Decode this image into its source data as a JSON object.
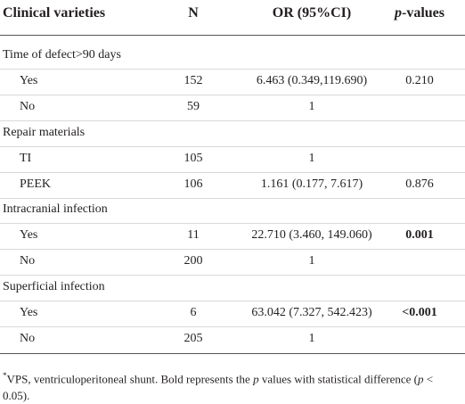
{
  "table": {
    "header": [
      "Clinical varieties",
      "N",
      "OR (95%CI)",
      {
        "italic": "p",
        "text": "-values"
      }
    ],
    "rows": [
      {
        "label": "Time of defect>90 days"
      },
      {
        "label": "Yes",
        "n": 152,
        "or": "6.463 (0.349,119.690)",
        "p": "0.210"
      },
      {
        "label": "No",
        "n": 59,
        "or": "1"
      },
      {
        "label": "Repair materials"
      },
      {
        "label": "TI",
        "n": 105,
        "or": "1"
      },
      {
        "label": "PEEK",
        "n": 106,
        "or": "1.161 (0.177, 7.617)",
        "p": "0.876"
      },
      {
        "label": "Intracranial infection"
      },
      {
        "label": "Yes",
        "n": 11,
        "or": "22.710 (3.460, 149.060)",
        "p": "0.001",
        "bold": true
      },
      {
        "label": "No",
        "n": 200,
        "or": "1"
      },
      {
        "label": "Superficial infection"
      },
      {
        "label": "Yes",
        "n": 6,
        "or": "63.042 (7.327, 542.423)",
        "p": "<0.001",
        "bold": true
      },
      {
        "label": "No",
        "n": 205,
        "or": "1"
      }
    ],
    "footnote": [
      {
        "text": "*",
        "style": "sup"
      },
      {
        "text": "VPS, ventriculoperitoneal shunt. Bold represents the ",
        "style": "normal"
      },
      {
        "text": "p",
        "style": "italic"
      },
      {
        "text": " values with statistical difference (",
        "style": "normal"
      },
      {
        "text": "p",
        "style": "italic"
      },
      {
        "text": " < 0.05).",
        "style": "normal"
      }
    ]
  }
}
